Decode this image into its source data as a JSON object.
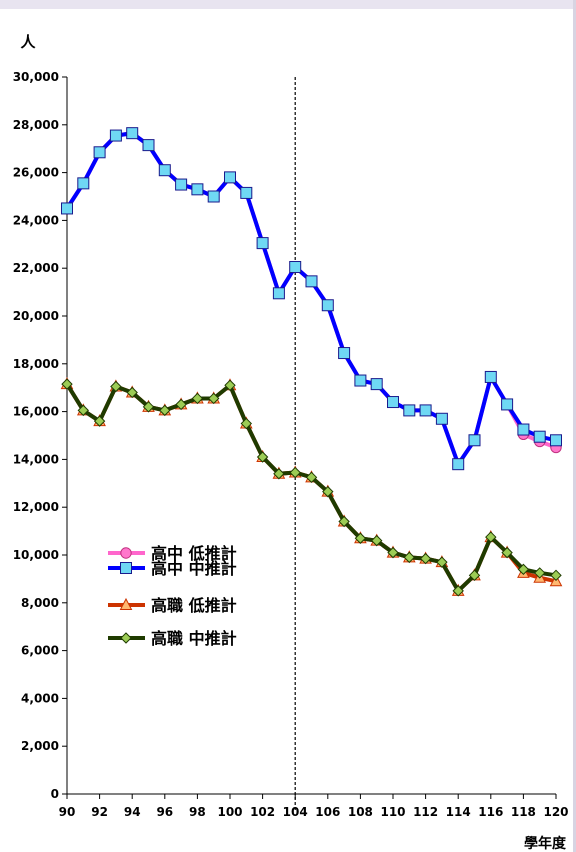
{
  "chart_data": {
    "type": "line",
    "ylabel": "人",
    "xlabel": "學年度",
    "ylim": [
      0,
      30000
    ],
    "xlim": [
      90,
      120
    ],
    "y_ticks": [
      "0",
      "2,000",
      "4,000",
      "6,000",
      "8,000",
      "10,000",
      "12,000",
      "14,000",
      "16,000",
      "18,000",
      "20,000",
      "22,000",
      "24,000",
      "26,000",
      "28,000",
      "30,000"
    ],
    "y_tick_values": [
      0,
      2000,
      4000,
      6000,
      8000,
      10000,
      12000,
      14000,
      16000,
      18000,
      20000,
      22000,
      24000,
      26000,
      28000,
      30000
    ],
    "x_ticks": [
      "90",
      "92",
      "94",
      "96",
      "98",
      "100",
      "102",
      "104",
      "106",
      "108",
      "110",
      "112",
      "114",
      "116",
      "118",
      "120"
    ],
    "x_tick_values": [
      90,
      92,
      94,
      96,
      98,
      100,
      102,
      104,
      106,
      108,
      110,
      112,
      114,
      116,
      118,
      120
    ],
    "reference_line_x": 104,
    "x": [
      90,
      91,
      92,
      93,
      94,
      95,
      96,
      97,
      98,
      99,
      100,
      101,
      102,
      103,
      104,
      105,
      106,
      107,
      108,
      109,
      110,
      111,
      112,
      113,
      114,
      115,
      116,
      117,
      118,
      119,
      120
    ],
    "grid": false,
    "legend_position": "bottom-left",
    "series": [
      {
        "name": "高中 低推計",
        "color": "#ff66cc",
        "marker": "circle",
        "values": [
          24500,
          25550,
          26850,
          27550,
          27650,
          27150,
          26100,
          25500,
          25300,
          25000,
          25800,
          25150,
          23050,
          20950,
          22050,
          21450,
          20450,
          18450,
          17300,
          17150,
          16400,
          16050,
          16050,
          15700,
          13800,
          14800,
          17450,
          16300,
          15050,
          14750,
          14500
        ]
      },
      {
        "name": "高中 中推計",
        "color": "#0000ff",
        "marker": "square",
        "values": [
          24500,
          25550,
          26850,
          27550,
          27650,
          27150,
          26100,
          25500,
          25300,
          25000,
          25800,
          25150,
          23050,
          20950,
          22050,
          21450,
          20450,
          18450,
          17300,
          17150,
          16400,
          16050,
          16050,
          15700,
          13800,
          14800,
          17450,
          16300,
          15250,
          14950,
          14800
        ]
      },
      {
        "name": "高職 低推計",
        "color": "#cc3300",
        "marker": "triangle",
        "values": [
          17150,
          16050,
          15600,
          17050,
          16800,
          16200,
          16050,
          16300,
          16550,
          16550,
          17100,
          15500,
          14100,
          13400,
          13450,
          13250,
          12650,
          11400,
          10700,
          10600,
          10100,
          9900,
          9850,
          9700,
          8500,
          9150,
          10750,
          10100,
          9250,
          9050,
          8900
        ]
      },
      {
        "name": "高職 中推計",
        "color": "#1f3b00",
        "marker": "diamond",
        "values": [
          17150,
          16050,
          15600,
          17050,
          16800,
          16200,
          16050,
          16300,
          16550,
          16550,
          17100,
          15500,
          14100,
          13400,
          13450,
          13250,
          12650,
          11400,
          10700,
          10600,
          10100,
          9900,
          9850,
          9700,
          8500,
          9150,
          10750,
          10100,
          9400,
          9250,
          9150
        ]
      }
    ]
  }
}
